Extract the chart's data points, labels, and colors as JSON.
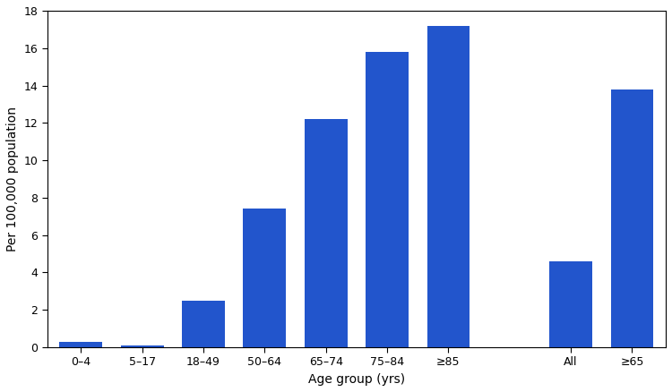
{
  "categories": [
    "0–4",
    "5–17",
    "18–49",
    "50–64",
    "65–74",
    "75–84",
    "≥85",
    "All",
    "≥65"
  ],
  "values": [
    0.3,
    0.1,
    2.5,
    7.4,
    12.2,
    15.8,
    17.2,
    4.6,
    13.8
  ],
  "bar_color": "#2255cc",
  "bar_edgecolor": "#2255cc",
  "xlabel": "Age group (yrs)",
  "ylabel": "Per 100,000 population",
  "ylim": [
    0,
    18
  ],
  "yticks": [
    0,
    2,
    4,
    6,
    8,
    10,
    12,
    14,
    16,
    18
  ],
  "xlabel_fontsize": 10,
  "ylabel_fontsize": 10,
  "tick_fontsize": 9,
  "background_color": "#ffffff",
  "bar_width": 0.7,
  "x_positions": [
    0,
    1,
    2,
    3,
    4,
    5,
    6,
    8,
    9
  ],
  "xlim": [
    -0.55,
    9.55
  ]
}
